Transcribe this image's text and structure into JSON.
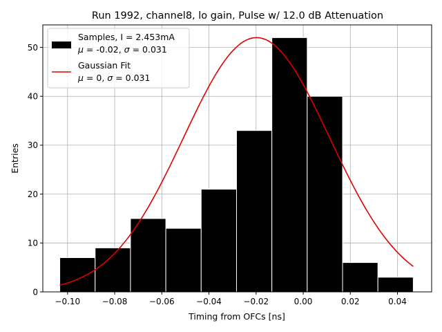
{
  "chart_data": {
    "type": "bar",
    "title": "Run 1992, channel8, lo gain, Pulse w/ 12.0 dB Attenuation",
    "xlabel": "Timing from OFCs [ns]",
    "ylabel": "Entries",
    "xlim": [
      -0.1105,
      0.0545
    ],
    "ylim": [
      0,
      54.6
    ],
    "xticks": [
      -0.1,
      -0.08,
      -0.06,
      -0.04,
      -0.02,
      0.0,
      0.02,
      0.04
    ],
    "xtick_labels": [
      "−0.10",
      "−0.08",
      "−0.06",
      "−0.04",
      "−0.02",
      "0.00",
      "0.02",
      "0.04"
    ],
    "yticks": [
      0,
      10,
      20,
      30,
      40,
      50
    ],
    "ytick_labels": [
      "0",
      "10",
      "20",
      "30",
      "40",
      "50"
    ],
    "grid": true,
    "histogram": {
      "name": "Samples",
      "bin_edges": [
        -0.1033,
        -0.0883,
        -0.0733,
        -0.0583,
        -0.0433,
        -0.0283,
        -0.0133,
        0.0017,
        0.0167,
        0.0317,
        0.0467
      ],
      "counts": [
        7,
        9,
        15,
        13,
        21,
        33,
        52,
        40,
        6,
        3
      ],
      "color": "#000000",
      "edgecolor": "#ffffff"
    },
    "fit": {
      "name": "Gaussian Fit",
      "type": "gaussian",
      "amplitude": 52,
      "mean": -0.0198,
      "sigma": 0.031,
      "x_range": [
        -0.1033,
        0.0467
      ],
      "color": "#e00000"
    },
    "legend": {
      "position": "top-left",
      "entries": [
        {
          "line1": "Samples, I = 2.453mA",
          "line2_prefix": "",
          "mu": "μ",
          "mu_val": " = -0.02, ",
          "sigma": "σ",
          "sigma_val": " = 0.031"
        },
        {
          "line1": "Gaussian Fit",
          "line2_prefix": "",
          "mu": "μ",
          "mu_val": " = 0, ",
          "sigma": "σ",
          "sigma_val": " = 0.031"
        }
      ]
    }
  }
}
